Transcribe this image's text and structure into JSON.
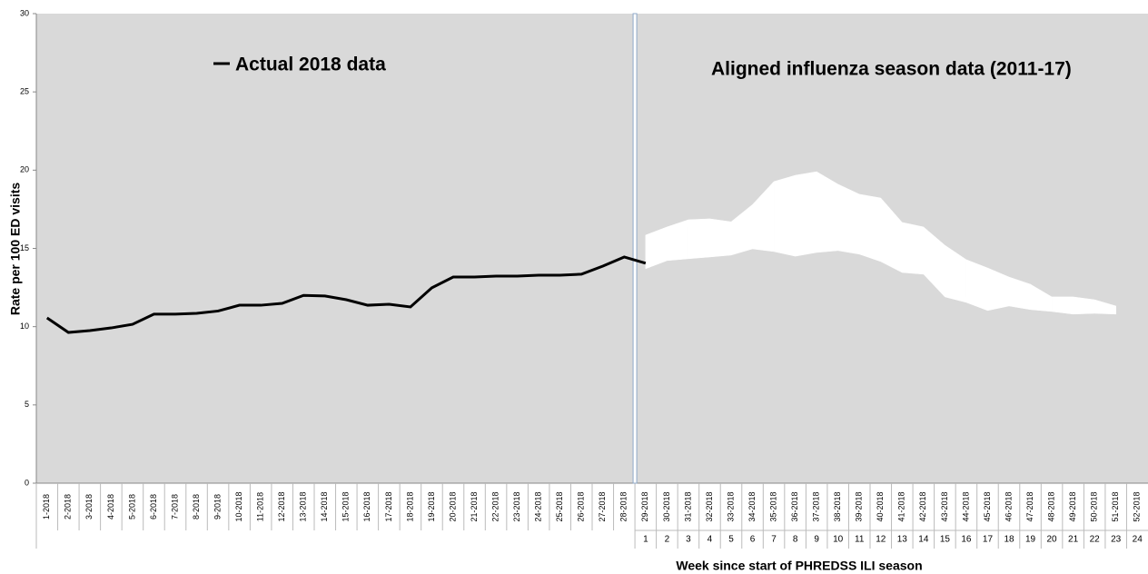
{
  "chart_data": {
    "type": "line",
    "y_label": "Rate per 100 ED visits",
    "x_label": "Week since start of PHREDSS ILI season",
    "categories": [
      "1-2018",
      "2-2018",
      "3-2018",
      "4-2018",
      "5-2018",
      "6-2018",
      "7-2018",
      "8-2018",
      "9-2018",
      "10-2018",
      "11-2018",
      "12-2018",
      "13-2018",
      "14-2018",
      "15-2018",
      "16-2018",
      "17-2018",
      "18-2018",
      "19-2018",
      "20-2018",
      "21-2018",
      "22-2018",
      "23-2018",
      "24-2018",
      "25-2018",
      "26-2018",
      "27-2018",
      "28-2018",
      "29-2018",
      "30-2018",
      "31-2018",
      "32-2018",
      "33-2018",
      "34-2018",
      "35-2018",
      "36-2018",
      "37-2018",
      "38-2018",
      "39-2018",
      "40-2018",
      "41-2018",
      "42-2018",
      "43-2018",
      "44-2018",
      "45-2018",
      "46-2018",
      "47-2018",
      "48-2018",
      "49-2018",
      "50-2018",
      "51-2018",
      "52-2018"
    ],
    "season_weeks": [
      1,
      2,
      3,
      4,
      5,
      6,
      7,
      8,
      9,
      10,
      11,
      12,
      13,
      14,
      15,
      16,
      17,
      18,
      19,
      20,
      21,
      22,
      23,
      24
    ],
    "series": [
      {
        "name": "Actual 2018 data",
        "color": "#000000",
        "values": [
          10.56,
          9.63,
          9.75,
          9.92,
          10.15,
          10.8,
          10.8,
          10.85,
          11.0,
          11.37,
          11.37,
          11.49,
          12.0,
          11.96,
          11.72,
          11.37,
          11.43,
          11.26,
          12.48,
          13.17,
          13.17,
          13.23,
          13.23,
          13.29,
          13.29,
          13.35,
          13.87,
          14.45,
          14.05,
          null,
          null,
          null,
          null,
          null,
          null,
          null,
          null,
          null,
          null,
          null,
          null,
          null,
          null,
          null,
          null,
          null,
          null,
          null,
          null,
          null,
          null,
          null
        ]
      },
      {
        "name": "Aligned influenza season data (2011-17)",
        "color": "#ffffff",
        "kind": "band",
        "upper": [
          null,
          null,
          null,
          null,
          null,
          null,
          null,
          null,
          null,
          null,
          null,
          null,
          null,
          null,
          null,
          null,
          null,
          null,
          null,
          null,
          null,
          null,
          null,
          null,
          null,
          null,
          null,
          null,
          15.85,
          16.37,
          16.83,
          16.89,
          16.7,
          17.8,
          19.27,
          19.67,
          19.9,
          19.1,
          18.46,
          18.22,
          16.66,
          16.37,
          15.2,
          14.28,
          13.75,
          13.17,
          12.71,
          11.9,
          11.9,
          11.72,
          11.32,
          null
        ],
        "lower": [
          null,
          null,
          null,
          null,
          null,
          null,
          null,
          null,
          null,
          null,
          null,
          null,
          null,
          null,
          null,
          null,
          null,
          null,
          null,
          null,
          null,
          null,
          null,
          null,
          null,
          null,
          null,
          null,
          13.7,
          14.22,
          14.34,
          14.45,
          14.57,
          14.97,
          14.8,
          14.5,
          14.74,
          14.86,
          14.63,
          14.16,
          13.46,
          13.35,
          11.9,
          11.55,
          11.03,
          11.32,
          11.09,
          10.97,
          10.8,
          10.85,
          10.8,
          null
        ]
      }
    ],
    "ylim": [
      0,
      30
    ],
    "yticks": [
      0,
      5,
      10,
      15,
      20,
      25,
      30
    ],
    "legend_color": "#ff0000",
    "background": "#d9d9d9"
  }
}
